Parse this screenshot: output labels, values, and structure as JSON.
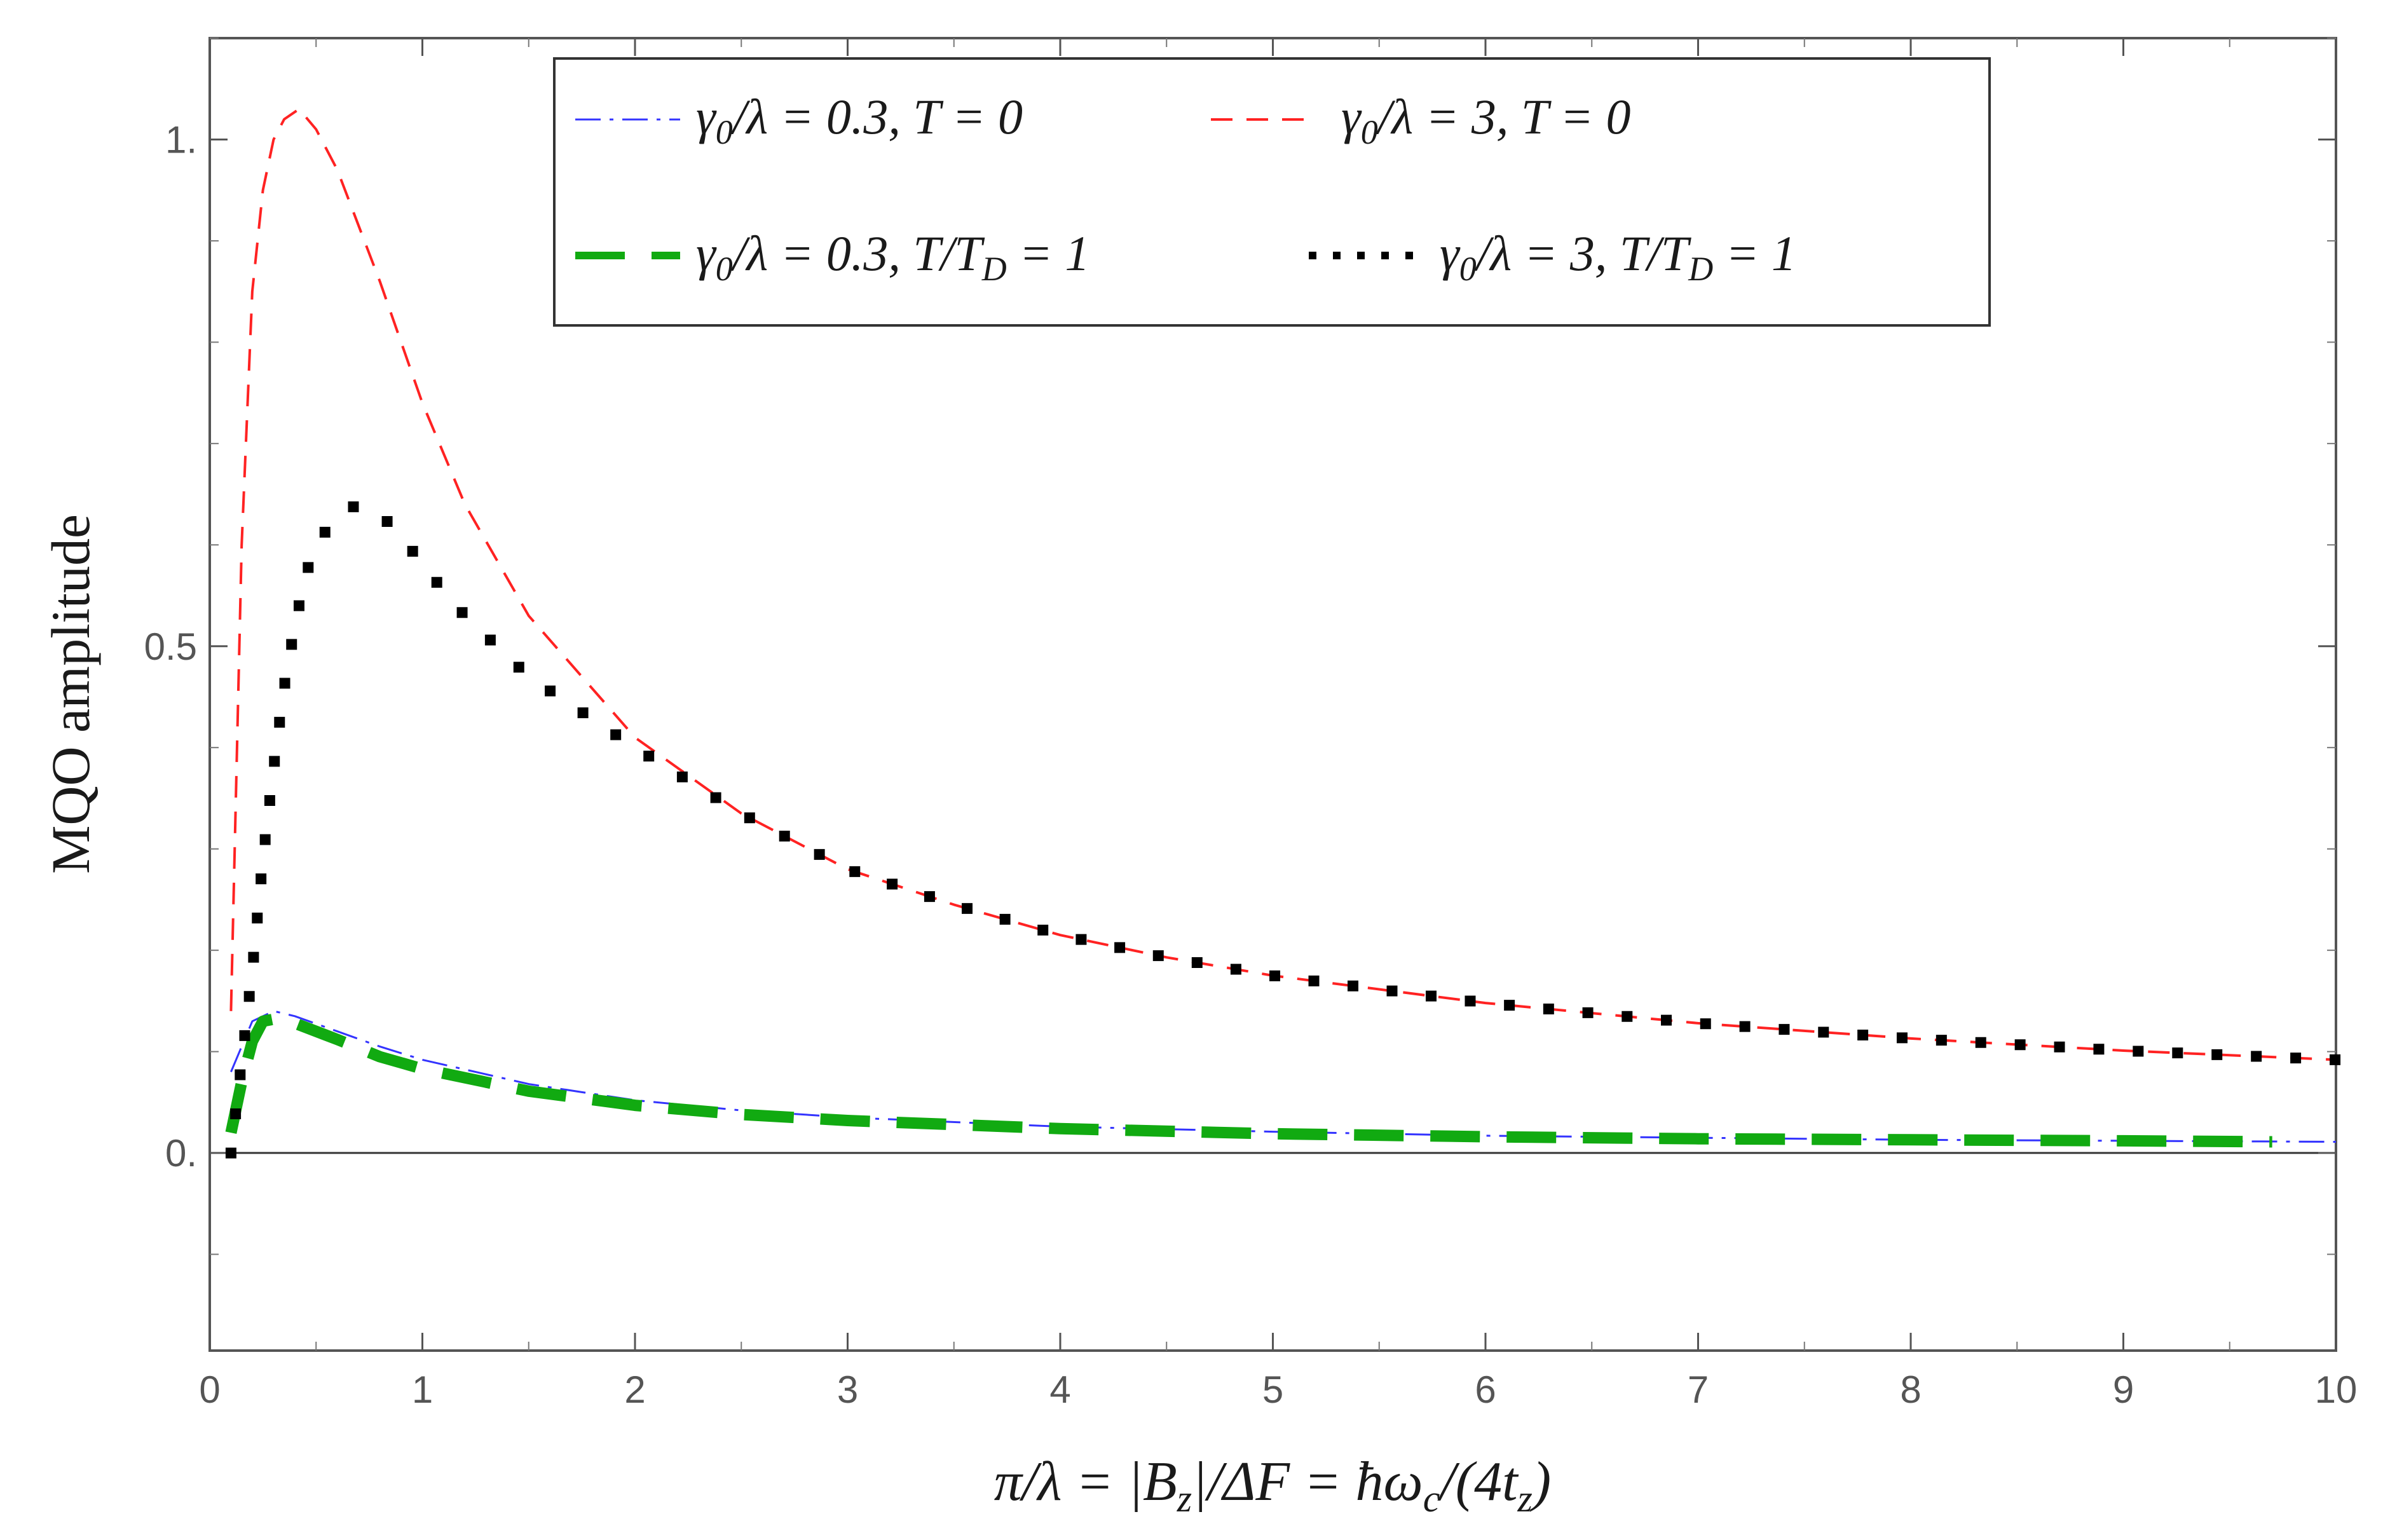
{
  "chart_data": {
    "type": "line",
    "title": "",
    "xlabel": "π/λ = |B_z|/ΔF = ħω_c/(4t_z)",
    "ylabel": "MQO amplitude",
    "xlim": [
      0,
      10
    ],
    "ylim": [
      -0.195,
      1.1
    ],
    "xticks": [
      0,
      1,
      2,
      3,
      4,
      5,
      6,
      7,
      8,
      9,
      10
    ],
    "xtick_labels": [
      "0",
      "1",
      "2",
      "3",
      "4",
      "5",
      "6",
      "7",
      "8",
      "9",
      "10"
    ],
    "yticks": [
      0,
      0.5,
      1
    ],
    "ytick_labels": [
      "0.",
      "0.5",
      "1."
    ],
    "grid": false,
    "legend_position": "top-center",
    "series": [
      {
        "name": "γ0/λ = 0.3, T = 0",
        "color": "#3333ff",
        "style": "dash-dot",
        "x": [
          0.1,
          0.2,
          0.3,
          0.4,
          0.6,
          0.8,
          1.0,
          1.5,
          2.0,
          2.5,
          3.0,
          4.0,
          5.0,
          6.0,
          7.0,
          8.0,
          9.0,
          10.0
        ],
        "y": [
          0.08,
          0.13,
          0.14,
          0.135,
          0.12,
          0.105,
          0.092,
          0.068,
          0.052,
          0.042,
          0.035,
          0.026,
          0.021,
          0.017,
          0.015,
          0.013,
          0.012,
          0.011
        ]
      },
      {
        "name": "γ0/λ = 3, T = 0",
        "color": "#ff2222",
        "style": "dashed",
        "x": [
          0.1,
          0.15,
          0.2,
          0.25,
          0.3,
          0.35,
          0.42,
          0.5,
          0.6,
          0.8,
          1.0,
          1.2,
          1.5,
          2.0,
          2.5,
          3.0,
          3.5,
          4.0,
          4.5,
          5.0,
          6.0,
          7.0,
          8.0,
          9.0,
          10.0
        ],
        "y": [
          0.14,
          0.6,
          0.85,
          0.95,
          1.0,
          1.02,
          1.03,
          1.01,
          0.97,
          0.86,
          0.74,
          0.64,
          0.53,
          0.41,
          0.335,
          0.28,
          0.245,
          0.215,
          0.193,
          0.175,
          0.148,
          0.128,
          0.113,
          0.101,
          0.092
        ]
      },
      {
        "name": "γ0/λ = 0.3, T/T_D = 1",
        "color": "#11aa11",
        "style": "long-dash",
        "x": [
          0.1,
          0.15,
          0.2,
          0.25,
          0.3,
          0.4,
          0.6,
          0.8,
          1.0,
          1.5,
          2.0,
          2.5,
          3.0,
          4.0,
          5.0,
          6.0,
          7.0,
          8.0,
          9.0,
          9.7
        ],
        "y": [
          0.02,
          0.07,
          0.11,
          0.13,
          0.132,
          0.128,
          0.112,
          0.095,
          0.083,
          0.061,
          0.047,
          0.038,
          0.032,
          0.024,
          0.019,
          0.016,
          0.014,
          0.013,
          0.012,
          0.011
        ]
      },
      {
        "name": "γ0/λ = 3, T/T_D = 1",
        "color": "#000000",
        "style": "dotted",
        "x": [
          0.1,
          0.15,
          0.2,
          0.25,
          0.3,
          0.35,
          0.4,
          0.45,
          0.5,
          0.6,
          0.7,
          0.8,
          0.9,
          1.0,
          1.2,
          1.5,
          2.0,
          2.5,
          3.0,
          3.5,
          4.0,
          4.5,
          5.0,
          6.0,
          7.0,
          8.0,
          9.0,
          10.0
        ],
        "y": [
          0.0,
          0.09,
          0.18,
          0.29,
          0.38,
          0.46,
          0.52,
          0.57,
          0.6,
          0.63,
          0.64,
          0.63,
          0.61,
          0.58,
          0.53,
          0.47,
          0.4,
          0.335,
          0.28,
          0.245,
          0.215,
          0.193,
          0.175,
          0.148,
          0.128,
          0.113,
          0.101,
          0.092
        ]
      }
    ]
  }
}
